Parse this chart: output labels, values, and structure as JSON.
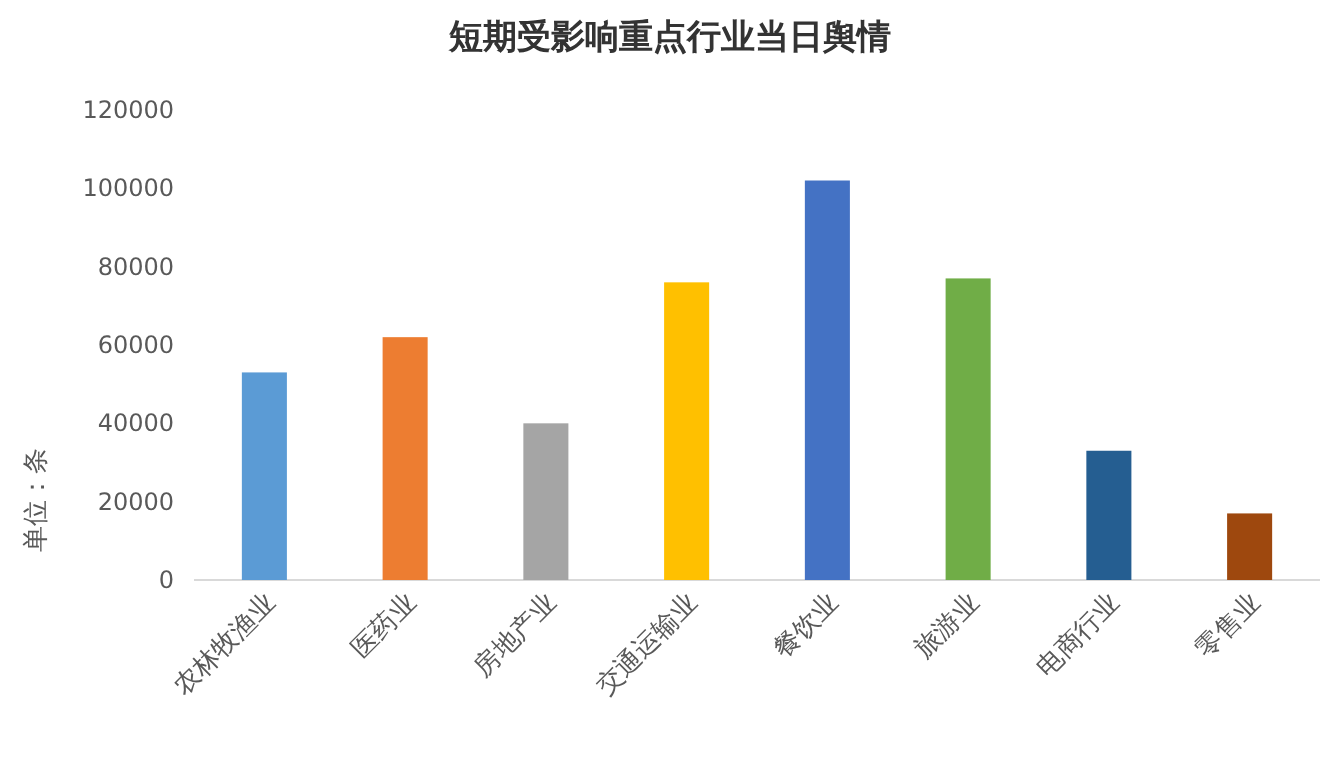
{
  "chart_data": {
    "type": "bar",
    "title": "短期受影响重点行业当日舆情",
    "ylabel": "单位：条",
    "categories": [
      "农林牧渔业",
      "医药业",
      "房地产业",
      "交通运输业",
      "餐饮业",
      "旅游业",
      "电商行业",
      "零售业"
    ],
    "values": [
      53000,
      62000,
      40000,
      76000,
      102000,
      77000,
      33000,
      17000
    ],
    "colors": [
      "#5b9bd5",
      "#ed7d31",
      "#a5a5a5",
      "#ffc000",
      "#4472c4",
      "#70ad47",
      "#255e91",
      "#9e480e"
    ],
    "ylim": [
      0,
      120000
    ],
    "yticks": [
      0,
      20000,
      40000,
      60000,
      80000,
      100000,
      120000
    ],
    "grid": false
  }
}
